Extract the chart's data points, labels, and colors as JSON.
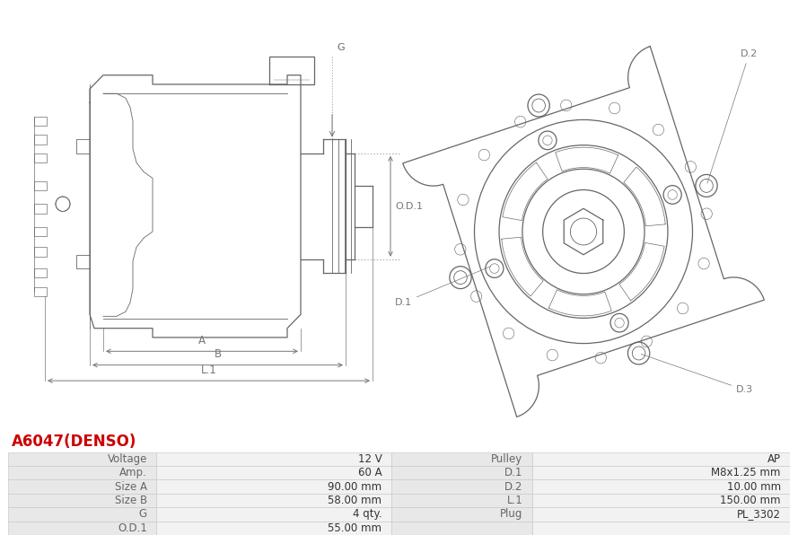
{
  "title": "A6047(DENSO)",
  "title_color": "#cc0000",
  "bg_color": "#ffffff",
  "table_rows": [
    [
      "Voltage",
      "12 V",
      "Pulley",
      "AP"
    ],
    [
      "Amp.",
      "60 A",
      "D.1",
      "M8x1.25 mm"
    ],
    [
      "Size A",
      "90.00 mm",
      "D.2",
      "10.00 mm"
    ],
    [
      "Size B",
      "58.00 mm",
      "L.1",
      "150.00 mm"
    ],
    [
      "G",
      "4 qty.",
      "Plug",
      "PL_3302"
    ],
    [
      "O.D.1",
      "55.00 mm",
      "",
      ""
    ]
  ],
  "table_row_bg1": "#e8e8e8",
  "table_row_bg2": "#f2f2f2",
  "table_border": "#cccccc",
  "label_color": "#666666",
  "value_color": "#333333",
  "drawing_color": "#666666",
  "dim_color": "#777777"
}
